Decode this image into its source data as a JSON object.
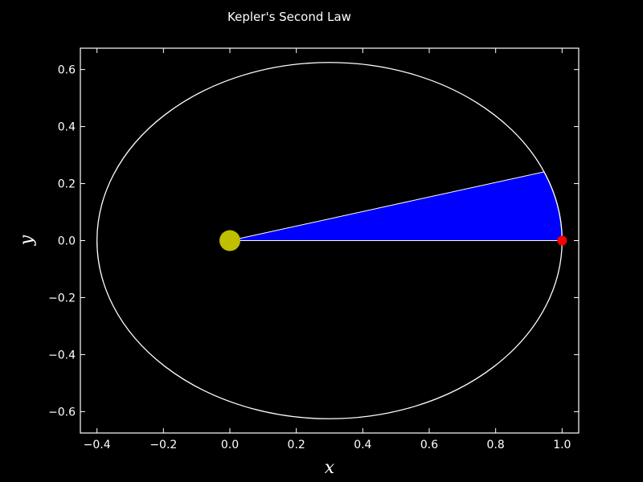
{
  "chart_data": {
    "type": "scatter",
    "title": "Kepler's Second Law",
    "xlabel": "x",
    "ylabel": "y",
    "xlim": [
      -0.45,
      1.05
    ],
    "ylim": [
      -0.675,
      0.675
    ],
    "x_ticks": [
      -0.4,
      -0.2,
      0.0,
      0.2,
      0.4,
      0.6,
      0.8,
      1.0
    ],
    "x_tick_labels": [
      "−0.4",
      "−0.2",
      "0.0",
      "0.2",
      "0.4",
      "0.6",
      "0.8",
      "1.0"
    ],
    "y_ticks": [
      0.6,
      0.4,
      0.2,
      0.0,
      -0.2,
      -0.4,
      -0.6
    ],
    "y_tick_labels": [
      "0.6",
      "0.4",
      "0.2",
      "0.0",
      "−0.2",
      "−0.4",
      "−0.6"
    ],
    "grid": false,
    "orbit": {
      "center_x": 0.3,
      "center_y": 0.0,
      "semi_major": 0.7,
      "semi_minor": 0.625
    },
    "sun": {
      "x": 0.0,
      "y": 0.0
    },
    "planet": {
      "x": 1.0,
      "y": 0.0
    },
    "swept_area": {
      "from_angle_deg": 0,
      "to_angle_deg": 22.7
    },
    "colors": {
      "background": "#000000",
      "axes": "#ffffff",
      "orbit": "#ffffff",
      "sun": "#bfbf00",
      "planet": "#ff0000",
      "sector": "#0000ff"
    }
  }
}
